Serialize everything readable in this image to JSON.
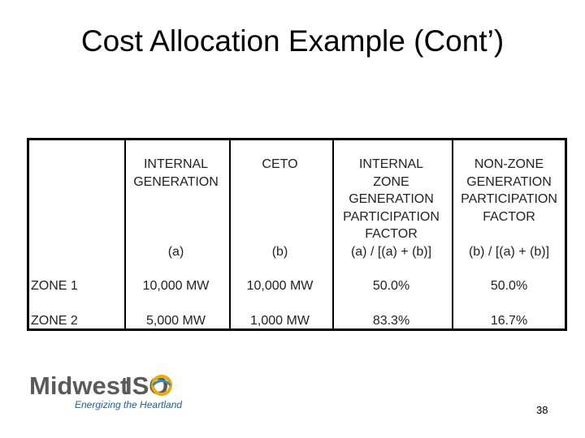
{
  "title": "Cost Allocation Example (Cont’)",
  "table": {
    "header": [
      {
        "lines": [],
        "note": null
      },
      {
        "lines": [
          "INTERNAL",
          "GENERATION"
        ],
        "note": "(a)"
      },
      {
        "lines": [
          "CETO"
        ],
        "note": "(b)"
      },
      {
        "lines": [
          "INTERNAL",
          "ZONE",
          "GENERATION",
          "PARTICIPATION",
          "FACTOR"
        ],
        "note": "(a) / [(a) + (b)]"
      },
      {
        "lines": [
          "NON-ZONE",
          "GENERATION",
          "PARTICIPATION",
          "FACTOR"
        ],
        "note": "(b) / [(a) + (b)]"
      }
    ],
    "rows": [
      [
        "ZONE 1",
        "10,000 MW",
        "10,000 MW",
        "50.0%",
        "50.0%"
      ],
      [
        "ZONE 2",
        "5,000 MW",
        "1,000 MW",
        "83.3%",
        "16.7%"
      ]
    ]
  },
  "logo": {
    "name": "Midwest",
    "brand": "ISO",
    "tagline": "Energizing the Heartland"
  },
  "page_number": "38"
}
